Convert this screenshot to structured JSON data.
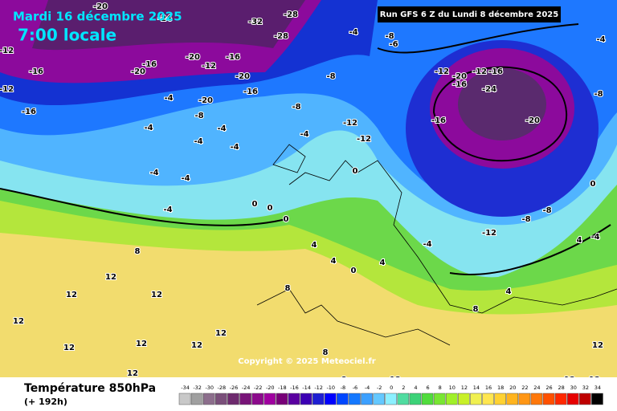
{
  "header": {
    "date": "Mardi 16 décembre 2025",
    "time": "7:00 locale",
    "run": "Run GFS 6 Z du Lundi 8 décembre 2025"
  },
  "footer": {
    "title": "Température 850hPa",
    "lead": "(+ 192h)",
    "copyright": "Copyright © 2025 Meteociel.fr"
  },
  "scale": {
    "values": [
      -34,
      -32,
      -30,
      -28,
      -26,
      -24,
      -22,
      -20,
      -18,
      -16,
      -14,
      -12,
      -10,
      -8,
      -6,
      -4,
      -2,
      0,
      2,
      4,
      6,
      8,
      10,
      12,
      14,
      16,
      18,
      20,
      22,
      24,
      26,
      28,
      30,
      32,
      34
    ],
    "colors": [
      "#c8c8c8",
      "#a0a0a0",
      "#8c6e8c",
      "#7a4f7a",
      "#6e2a6e",
      "#781478",
      "#8c0a8c",
      "#a000a0",
      "#780078",
      "#5a00a0",
      "#3c00b4",
      "#1e1ed2",
      "#0000ff",
      "#0046ff",
      "#1478ff",
      "#3ca0ff",
      "#64c8ff",
      "#8cf0ff",
      "#50dca0",
      "#3cd278",
      "#50dc3c",
      "#78e632",
      "#a0f028",
      "#c8f028",
      "#f0f050",
      "#ffe650",
      "#ffd232",
      "#ffb41e",
      "#ff9614",
      "#ff780a",
      "#ff5000",
      "#ff2800",
      "#e60000",
      "#be0000",
      "#000000"
    ]
  },
  "map_labels": [
    -20,
    -24,
    -28,
    -32,
    -28,
    -4,
    -8,
    -6,
    -12,
    -16,
    -16,
    -20,
    -20,
    -12,
    -16,
    -20,
    -16,
    -8,
    -20,
    -8,
    -4,
    -4,
    -4,
    -8,
    -4,
    -12,
    -12,
    -4,
    -4,
    -4,
    -4,
    -4,
    0,
    0,
    0,
    0,
    -4,
    -12,
    -20,
    -12,
    -16,
    -16,
    -24,
    -16,
    -20,
    -12,
    -8,
    -8,
    -4,
    4,
    4,
    4,
    4,
    0,
    4,
    8,
    8,
    12,
    12,
    12,
    12,
    12,
    12,
    12,
    12,
    12,
    8,
    8,
    12,
    12,
    12,
    12,
    -16,
    -12,
    -4,
    -8,
    0,
    8
  ]
}
